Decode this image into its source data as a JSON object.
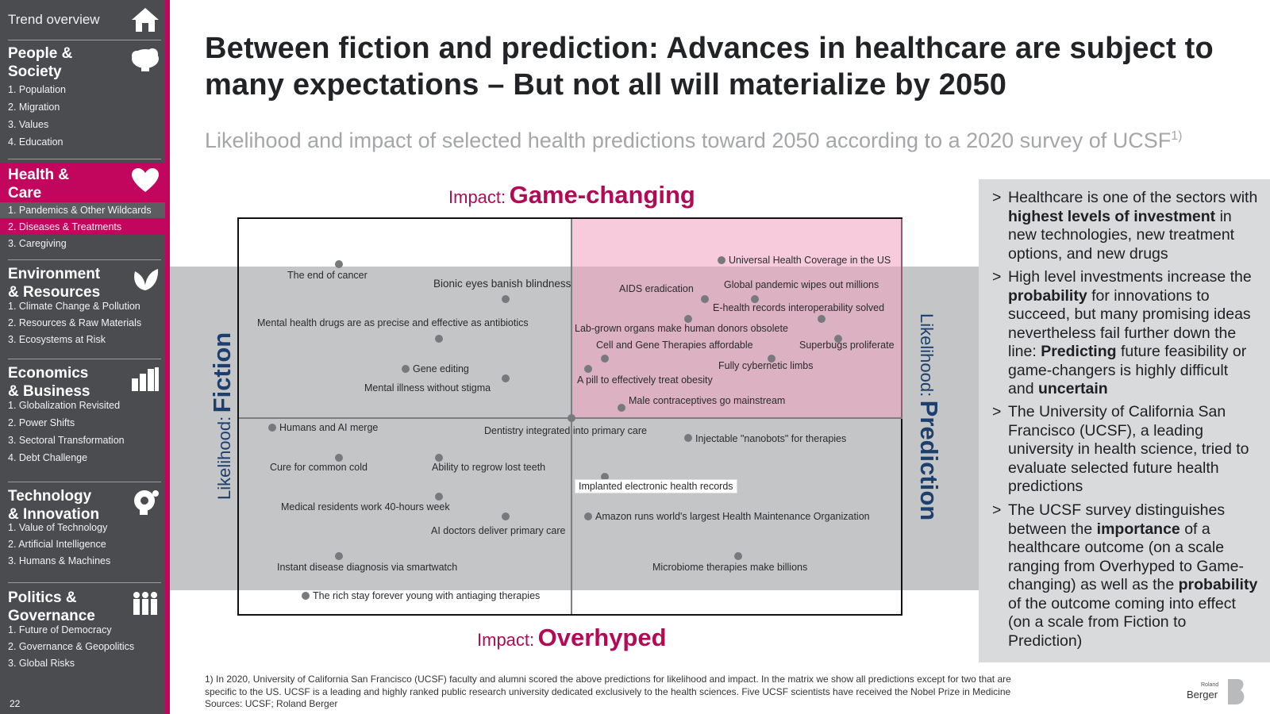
{
  "sidebar": {
    "top": {
      "label": "Trend overview",
      "icon": "home-icon"
    },
    "sections": [
      {
        "title_line1": "People &",
        "title_line2": "Society",
        "icon": "cloud-head-icon",
        "items": [
          "1. Population",
          "2. Migration",
          "3. Values",
          "4. Education"
        ]
      },
      {
        "title_line1": "Health &",
        "title_line2": "Care",
        "icon": "heart-icon",
        "items": [
          "1. Pandemics & Other Wildcards",
          "2. Diseases & Treatments",
          "3. Caregiving"
        ],
        "active_item": 1
      },
      {
        "title_line1": "Environment",
        "title_line2": "& Resources",
        "icon": "leaf-icon",
        "items": [
          "1. Climate Change & Pollution",
          "2. Resources & Raw Materials",
          "3. Ecosystems at Risk"
        ]
      },
      {
        "title_line1": "Economics",
        "title_line2": "& Business",
        "icon": "factory-chart-icon",
        "items": [
          "1. Globalization Revisited",
          "2. Power Shifts",
          "3. Sectoral Transformation",
          "4. Debt Challenge"
        ]
      },
      {
        "title_line1": "Technology",
        "title_line2": "& Innovation",
        "icon": "gear-head-icon",
        "items": [
          "1. Value of Technology",
          "2. Artificial Intelligence",
          "3. Humans & Machines"
        ]
      },
      {
        "title_line1": "Politics &",
        "title_line2": "Governance",
        "icon": "people-icon",
        "items": [
          "1. Future of Democracy",
          "2. Governance & Geopolitics",
          "3. Global Risks"
        ]
      }
    ],
    "page_number": "22"
  },
  "header": {
    "title": "Between fiction and prediction: Advances in healthcare are subject to many expectations – But not all will materialize by 2050",
    "subtitle": "Likelihood and impact of selected health predictions toward 2050 according to a 2020 survey of UCSF",
    "subtitle_sup": "1)"
  },
  "matrix": {
    "impact_top_prefix": "Impact:",
    "impact_top_value": "Game-changing",
    "impact_bottom_prefix": "Impact:",
    "impact_bottom_value": "Overhyped",
    "likelihood_left_prefix": "Likelihood:",
    "likelihood_left_value": "Fiction",
    "likelihood_right_prefix": "Likelihood:",
    "likelihood_right_value": "Prediction",
    "colors": {
      "accent": "#c2065e",
      "axis_blue": "#1c3f6e",
      "quadrant_pink": "#f3b6cb",
      "band_gray": "#c4c5c7"
    },
    "predictions": [
      {
        "label": "The end of cancer"
      },
      {
        "label": "Bionic eyes banish blindness"
      },
      {
        "label": "Mental health drugs are as precise and effective as antibiotics"
      },
      {
        "label": "Gene editing"
      },
      {
        "label": "Mental illness without stigma"
      },
      {
        "label": "Humans and AI merge"
      },
      {
        "label": "Cure for common cold"
      },
      {
        "label": "Ability to regrow lost teeth"
      },
      {
        "label": "Medical residents work 40-hours week"
      },
      {
        "label": "AI doctors deliver primary care"
      },
      {
        "label": "Instant disease diagnosis via smartwatch"
      },
      {
        "label": "The rich stay forever young with antiaging therapies"
      },
      {
        "label": "Universal Health Coverage in the US"
      },
      {
        "label": "AIDS eradication"
      },
      {
        "label": "Global pandemic wipes out millions"
      },
      {
        "label": "E-health records interoperability solved"
      },
      {
        "label": "Lab-grown organs make human donors obsolete"
      },
      {
        "label": "Cell and Gene Therapies affordable"
      },
      {
        "label": "Superbugs proliferate"
      },
      {
        "label": "Fully cybernetic limbs"
      },
      {
        "label": "A pill to effectively treat obesity"
      },
      {
        "label": "Male contraceptives go mainstream"
      },
      {
        "label": "Dentistry integrated into primary care"
      },
      {
        "label": "Injectable \"nanobots\" for therapies"
      },
      {
        "label": "Implanted electronic health records"
      },
      {
        "label": "Amazon runs world's largest Health Maintenance Organization"
      },
      {
        "label": "Microbiome therapies make billions"
      }
    ]
  },
  "panel": {
    "bullets": [
      {
        "marker": ">",
        "parts": [
          "Healthcare is one of the sectors with ",
          "highest levels of investment",
          " in new technologies, new treatment options, and new drugs"
        ]
      },
      {
        "marker": ">",
        "parts": [
          "High level investments increase the ",
          "probability",
          " for innovations to succeed, but many promising ideas nevertheless fail further down the line: ",
          "Predicting",
          " future feasibility or game-changers is highly difficult and ",
          "uncertain"
        ]
      },
      {
        "marker": ">",
        "parts": [
          "The University of California San Francisco (UCSF), a leading university in health science, tried to evaluate selected future health predictions"
        ]
      },
      {
        "marker": ">",
        "parts": [
          "The UCSF survey distinguishes between the ",
          "importance",
          " of a healthcare outcome (on a scale ranging from Overhyped to Game-changing) as well as the ",
          "probability",
          " of the outcome coming into effect (on a scale from Fiction to Prediction)"
        ]
      }
    ]
  },
  "footnote": {
    "line1": "1) In 2020, University of California San Francisco (UCSF) faculty and alumni scored the above predictions for likelihood and impact. In the matrix we show all predictions except for two that are",
    "line2": "specific to the US. UCSF is a leading and highly ranked public research university dedicated exclusively to the health sciences. Five UCSF scientists have received the Nobel Prize in Medicine",
    "line3": "Sources: UCSF; Roland Berger"
  },
  "logo": {
    "small": "Roland",
    "big": "Berger"
  }
}
